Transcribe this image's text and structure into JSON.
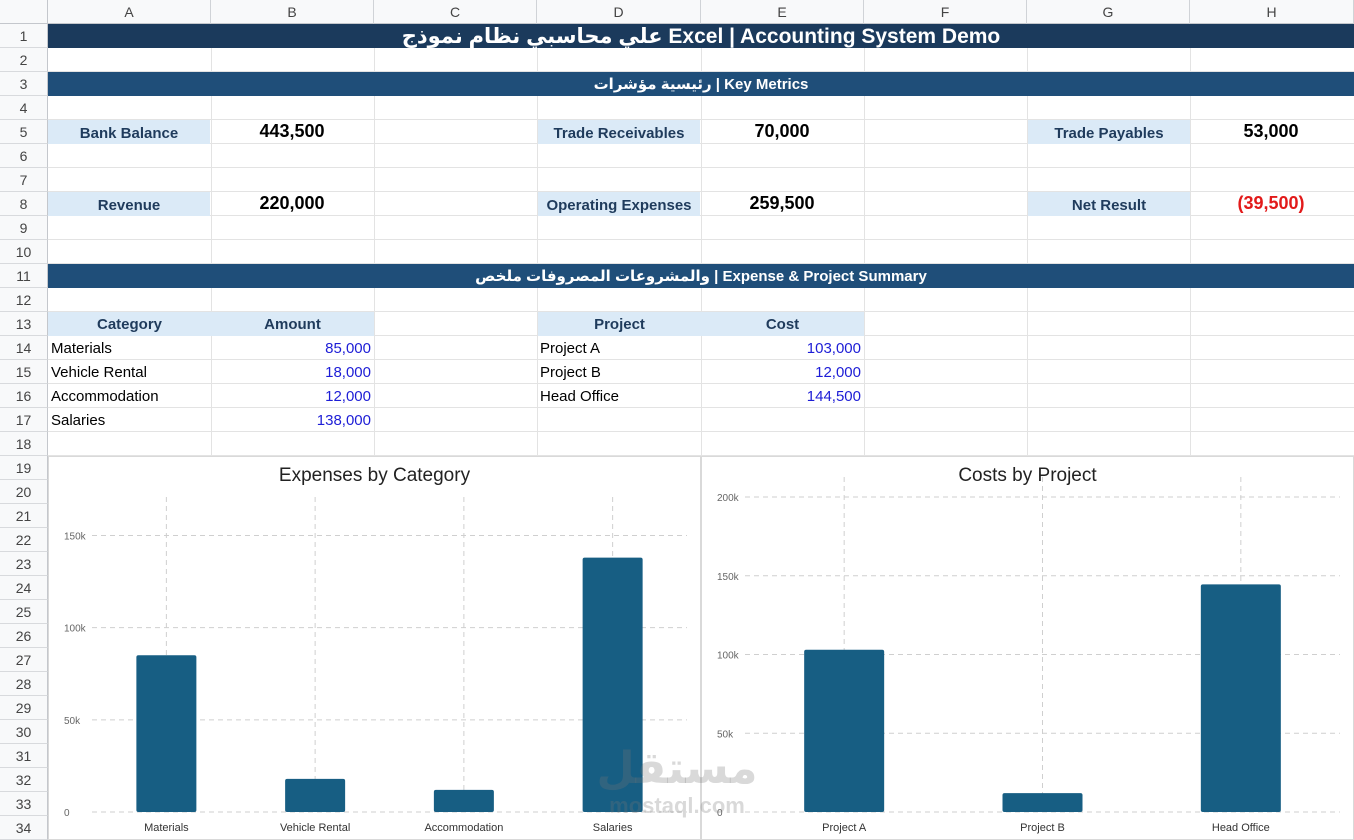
{
  "columns": [
    "A",
    "B",
    "C",
    "D",
    "E",
    "F",
    "G",
    "H"
  ],
  "rows": [
    "1",
    "2",
    "3",
    "4",
    "5",
    "6",
    "7",
    "8",
    "9",
    "10",
    "11",
    "12",
    "13",
    "14",
    "15",
    "16",
    "17",
    "18",
    "19",
    "20",
    "21",
    "22",
    "23",
    "24",
    "25",
    "26",
    "27",
    "28",
    "29",
    "30",
    "31",
    "32",
    "33",
    "34"
  ],
  "title": "علي محاسبي نظام نموذج Excel | Accounting System Demo",
  "key_metrics_header": "رئيسية مؤشرات | Key Metrics",
  "metrics": {
    "bank_balance": {
      "label": "Bank Balance",
      "value": "443,500"
    },
    "trade_receivables": {
      "label": "Trade Receivables",
      "value": "70,000"
    },
    "trade_payables": {
      "label": "Trade Payables",
      "value": "53,000"
    },
    "revenue": {
      "label": "Revenue",
      "value": "220,000"
    },
    "operating_expenses": {
      "label": "Operating Expenses",
      "value": "259,500"
    },
    "net_result": {
      "label": "Net Result",
      "value": "(39,500)"
    }
  },
  "summary_header": "والمشروعات المصروفات ملخص | Expense & Project Summary",
  "category_table": {
    "headers": [
      "Category",
      "Amount"
    ],
    "rows": [
      {
        "name": "Materials",
        "amount": "85,000"
      },
      {
        "name": "Vehicle Rental",
        "amount": "18,000"
      },
      {
        "name": "Accommodation",
        "amount": "12,000"
      },
      {
        "name": "Salaries",
        "amount": "138,000"
      }
    ]
  },
  "project_table": {
    "headers": [
      "Project",
      "Cost"
    ],
    "rows": [
      {
        "name": "Project A",
        "cost": "103,000"
      },
      {
        "name": "Project B",
        "cost": "12,000"
      },
      {
        "name": "Head Office",
        "cost": "144,500"
      }
    ]
  },
  "colors": {
    "title_bg": "#1b3a5c",
    "section_bg": "#1f4e79",
    "label_bg": "#dbeaf7",
    "bar": "#175e83",
    "number_blue": "#1d1dd6",
    "negative": "#e21a1a"
  },
  "watermark": {
    "arabic": "مستقل",
    "latin": "mostaql.com"
  },
  "chart_data": [
    {
      "type": "bar",
      "title": "Expenses by Category",
      "categories": [
        "Materials",
        "Vehicle Rental",
        "Accommodation",
        "Salaries"
      ],
      "values": [
        85000,
        18000,
        12000,
        138000
      ],
      "ylim": [
        0,
        160000
      ],
      "yticks": [
        0,
        50000,
        100000,
        150000
      ],
      "ytick_labels": [
        "0",
        "50k",
        "100k",
        "150k"
      ],
      "grid": true,
      "legend": "none"
    },
    {
      "type": "bar",
      "title": "Costs by Project",
      "categories": [
        "Project A",
        "Project B",
        "Head Office"
      ],
      "values": [
        103000,
        12000,
        144500
      ],
      "ylim": [
        0,
        200000
      ],
      "yticks": [
        0,
        50000,
        100000,
        150000,
        200000
      ],
      "ytick_labels": [
        "0",
        "50k",
        "100k",
        "150k",
        "200k"
      ],
      "grid": true,
      "legend": "none"
    }
  ]
}
